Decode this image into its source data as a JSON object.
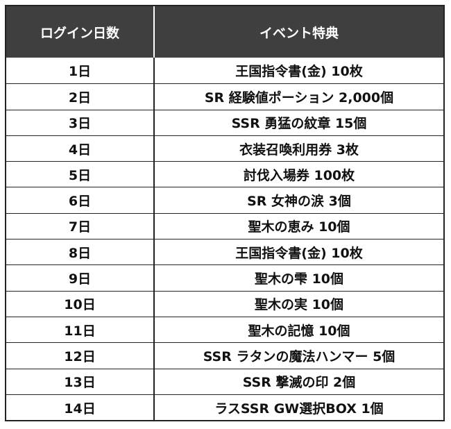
{
  "table": {
    "headers": [
      "ログイン日数",
      "イベント特典"
    ],
    "rows": [
      {
        "day": "1日",
        "reward": "王国指令書(金) 10枚"
      },
      {
        "day": "2日",
        "reward": "SR 経験値ポーション 2,000個"
      },
      {
        "day": "3日",
        "reward": "SSR 勇猛の紋章 15個"
      },
      {
        "day": "4日",
        "reward": "衣装召喚利用券 3枚"
      },
      {
        "day": "5日",
        "reward": "討伐入場券 100枚"
      },
      {
        "day": "6日",
        "reward": "SR 女神の涙 3個"
      },
      {
        "day": "7日",
        "reward": "聖木の恵み 10個"
      },
      {
        "day": "8日",
        "reward": "王国指令書(金) 10枚"
      },
      {
        "day": "9日",
        "reward": "聖木の雫 10個"
      },
      {
        "day": "10日",
        "reward": "聖木の実 10個"
      },
      {
        "day": "11日",
        "reward": "聖木の記憶 10個"
      },
      {
        "day": "12日",
        "reward": "SSR ラタンの魔法ハンマー 5個"
      },
      {
        "day": "13日",
        "reward": "SSR 撃滅の印 2個"
      },
      {
        "day": "14日",
        "reward": "ラスSSR GW選択BOX 1個"
      }
    ]
  }
}
